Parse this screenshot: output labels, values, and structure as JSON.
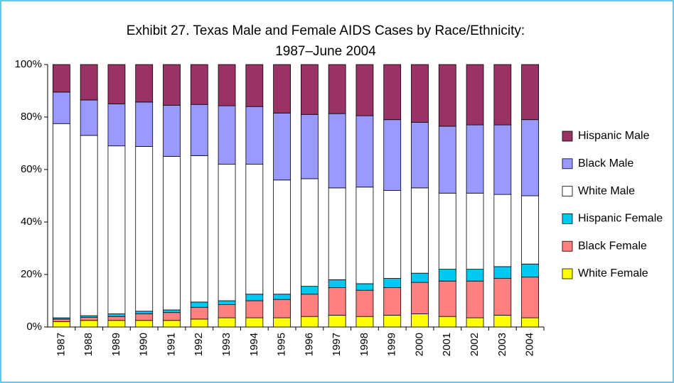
{
  "chart_data": {
    "type": "stacked_bar",
    "title": "Exhibit 27. Texas Male and Female AIDS Cases by Race/Ethnicity:",
    "subtitle": "1987–June 2004",
    "categories": [
      "1987",
      "1988",
      "1989",
      "1990",
      "1991",
      "1992",
      "1993",
      "1994",
      "1995",
      "1996",
      "1997",
      "1998",
      "1999",
      "2000",
      "2001",
      "2002",
      "2003",
      "2004"
    ],
    "series": [
      {
        "name": "White Female",
        "color": "#ffff00",
        "values": [
          2,
          2.5,
          2.5,
          2.5,
          2.5,
          3,
          3.5,
          3.5,
          3.5,
          4,
          4.5,
          4,
          4.5,
          5,
          4,
          3.5,
          4.5,
          3.5
        ]
      },
      {
        "name": "Black Female",
        "color": "#ff8080",
        "values": [
          1,
          1.2,
          1.5,
          2.5,
          3,
          4.5,
          5,
          6.5,
          7,
          8.5,
          10.5,
          10,
          10.5,
          12,
          13.5,
          14,
          14,
          15.5
        ]
      },
      {
        "name": "Hispanic Female",
        "color": "#00c8f0",
        "values": [
          0.5,
          0.6,
          1,
          1,
          1,
          2,
          1.5,
          2.5,
          2,
          3,
          3,
          2.5,
          3.5,
          3.5,
          4.5,
          4.5,
          4.5,
          5
        ]
      },
      {
        "name": "White Male",
        "color": "#ffffff",
        "values": [
          74,
          68.7,
          64,
          62.8,
          58.5,
          55.8,
          52,
          49.5,
          43.5,
          41,
          35,
          36.8,
          33.5,
          32.5,
          29,
          29,
          27.5,
          26
        ]
      },
      {
        "name": "Black Male",
        "color": "#9999ff",
        "values": [
          12,
          13.5,
          16,
          16.9,
          19.5,
          19.5,
          22.3,
          22,
          25.5,
          24.5,
          28.3,
          27.2,
          27,
          25,
          25.5,
          26,
          26.5,
          29
        ]
      },
      {
        "name": "Hispanic Male",
        "color": "#993366",
        "values": [
          10.5,
          13.5,
          15,
          14.3,
          15.5,
          15.2,
          15.7,
          16,
          18.5,
          19,
          18.7,
          19.5,
          21,
          22,
          23.5,
          23,
          23,
          21
        ]
      }
    ],
    "ylim": [
      0,
      100
    ],
    "yticks": [
      {
        "value": 0,
        "label": "0%"
      },
      {
        "value": 20,
        "label": "20%"
      },
      {
        "value": 40,
        "label": "40%"
      },
      {
        "value": 60,
        "label": "60%"
      },
      {
        "value": 80,
        "label": "80%"
      },
      {
        "value": 100,
        "label": "100%"
      }
    ],
    "legend": "right"
  }
}
